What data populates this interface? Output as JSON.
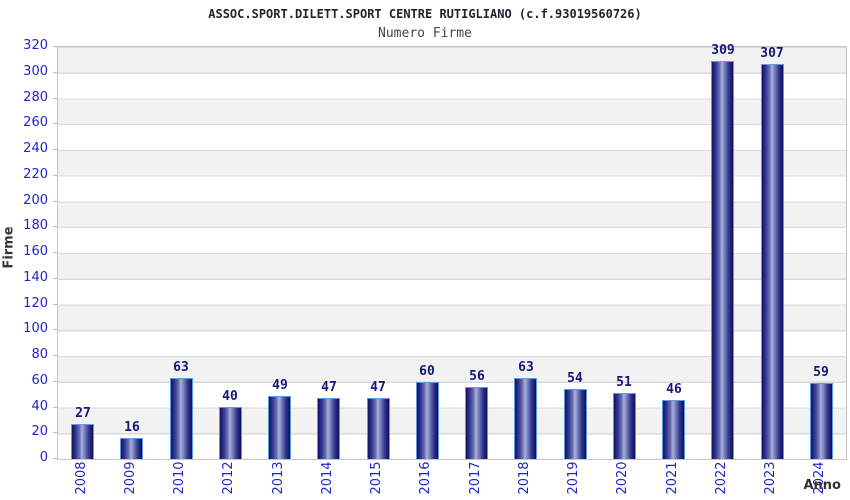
{
  "chart_data": {
    "type": "bar",
    "title": "ASSOC.SPORT.DILETT.SPORT CENTRE RUTIGLIANO (c.f.93019560726)",
    "subtitle": "Numero Firme",
    "xlabel": "Anno",
    "ylabel": "Firme",
    "categories": [
      "2008",
      "2009",
      "2010",
      "2012",
      "2013",
      "2014",
      "2015",
      "2016",
      "2017",
      "2018",
      "2019",
      "2020",
      "2021",
      "2022",
      "2023",
      "2024"
    ],
    "values": [
      27,
      16,
      63,
      40,
      49,
      47,
      47,
      60,
      56,
      63,
      54,
      51,
      46,
      309,
      307,
      59
    ],
    "ylim": [
      0,
      320
    ],
    "y_tick_step": 20,
    "grid": "horizontal-bands-alternating",
    "legend": "none",
    "colors": {
      "tick_label_blue": "#2323cc",
      "value_label_navy": "#15157a",
      "title_dark": "#222233",
      "subtitle_gray": "#454545",
      "band_gray": "#f2f2f2",
      "band_white": "#ffffff",
      "gridline": "#d9d9d9",
      "plot_border": "#c6c6c6",
      "bar_border_lightblue": "#5d9be0",
      "bar_dark_navy": "#101066",
      "bar_highlight": "#aab0d8",
      "axis_title_dark": "#333333"
    }
  }
}
